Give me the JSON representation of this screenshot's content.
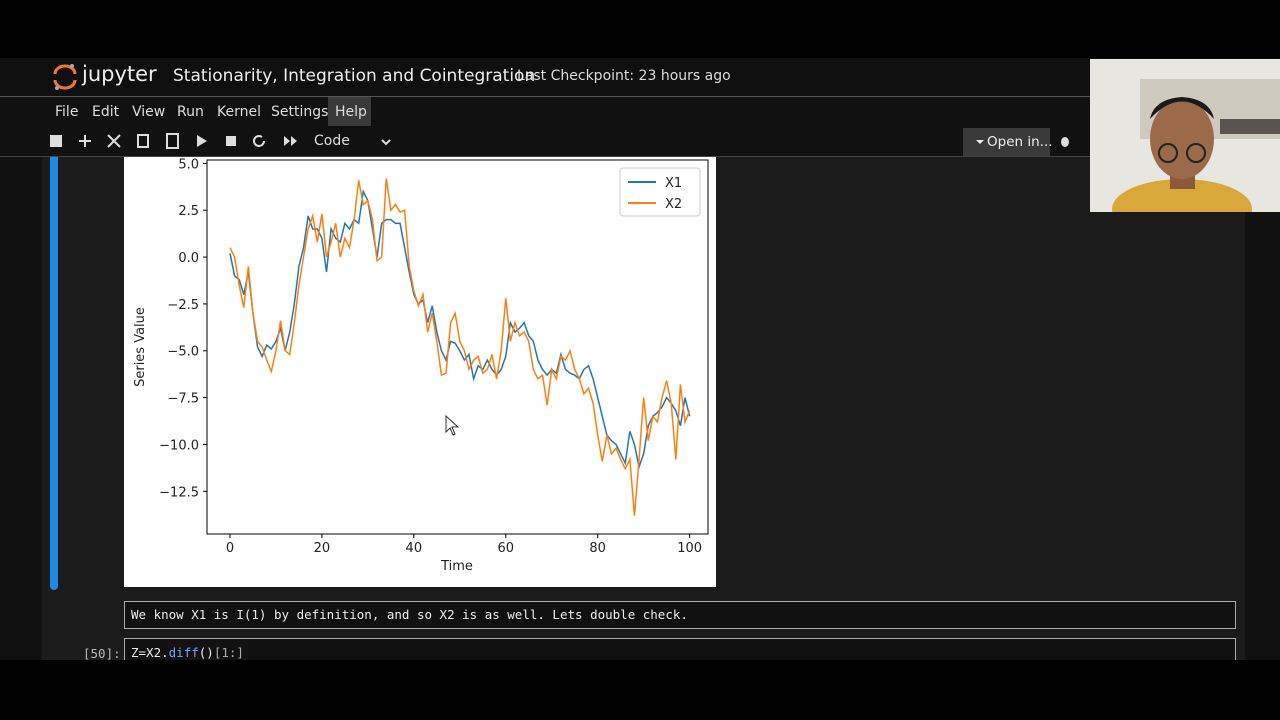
{
  "header": {
    "logo": "jupyter",
    "title": "Stationarity, Integration and Cointegration",
    "checkpoint": "Last Checkpoint: 23 hours ago"
  },
  "menu": [
    "File",
    "Edit",
    "View",
    "Run",
    "Kernel",
    "Settings",
    "Help"
  ],
  "toolbar": {
    "cell_type": "Code",
    "open_in": "Open in..."
  },
  "cells": [
    {
      "text": "We know X1 is I(1) by definition, and so X2 is as well. Lets double check."
    },
    {
      "prompt": "[50]:",
      "code": [
        "Z=X2.",
        "diff",
        "()",
        "[1:]"
      ]
    }
  ],
  "chart_data": {
    "type": "line",
    "xlabel": "Time",
    "ylabel": "Series Value",
    "x": [
      0,
      1,
      2,
      3,
      4,
      5,
      6,
      7,
      8,
      9,
      10,
      11,
      12,
      13,
      14,
      15,
      16,
      17,
      18,
      19,
      20,
      21,
      22,
      23,
      24,
      25,
      26,
      27,
      28,
      29,
      30,
      31,
      32,
      33,
      34,
      35,
      36,
      37,
      38,
      39,
      40,
      41,
      42,
      43,
      44,
      45,
      46,
      47,
      48,
      49,
      50,
      51,
      52,
      53,
      54,
      55,
      56,
      57,
      58,
      59,
      60,
      61,
      62,
      63,
      64,
      65,
      66,
      67,
      68,
      69,
      70,
      71,
      72,
      73,
      74,
      75,
      76,
      77,
      78,
      79,
      80,
      81,
      82,
      83,
      84,
      85,
      86,
      87,
      88,
      89,
      90,
      91,
      92,
      93,
      94,
      95,
      96,
      97,
      98,
      99,
      100
    ],
    "series": [
      {
        "name": "X1",
        "color": "#1f77b4",
        "values": [
          0.2,
          -1.0,
          -1.2,
          -2.0,
          -0.8,
          -3.0,
          -4.8,
          -5.3,
          -4.7,
          -4.9,
          -4.5,
          -3.8,
          -5.0,
          -4.0,
          -2.5,
          -0.5,
          0.5,
          2.2,
          1.5,
          1.5,
          1.0,
          -0.8,
          1.5,
          1.0,
          0.8,
          1.8,
          1.5,
          2.0,
          1.8,
          3.5,
          3.0,
          1.5,
          0.0,
          1.8,
          2.0,
          2.0,
          1.8,
          1.8,
          0.5,
          -0.8,
          -2.0,
          -2.5,
          -2.3,
          -3.5,
          -2.6,
          -4.0,
          -5.0,
          -5.5,
          -4.5,
          -4.6,
          -5.0,
          -5.5,
          -5.2,
          -6.5,
          -5.8,
          -6.0,
          -5.5,
          -6.0,
          -6.3,
          -6.0,
          -5.3,
          -3.5,
          -4.0,
          -3.8,
          -3.5,
          -4.2,
          -4.5,
          -5.5,
          -6.0,
          -6.3,
          -6.0,
          -6.2,
          -5.2,
          -6.0,
          -6.2,
          -6.3,
          -6.5,
          -6.0,
          -5.8,
          -6.5,
          -7.5,
          -8.5,
          -9.5,
          -9.8,
          -10.0,
          -10.5,
          -11.0,
          -9.3,
          -10.0,
          -11.2,
          -10.5,
          -9.0,
          -8.5,
          -8.3,
          -8.0,
          -7.5,
          -7.8,
          -8.2,
          -9.0,
          -7.5,
          -8.5
        ]
      },
      {
        "name": "X2",
        "color": "#ff7f0e",
        "values": [
          0.5,
          0.0,
          -1.5,
          -2.7,
          -0.5,
          -3.0,
          -4.5,
          -4.8,
          -5.5,
          -6.1,
          -5.0,
          -3.4,
          -5.0,
          -5.2,
          -3.5,
          -1.5,
          0.0,
          1.5,
          2.2,
          0.8,
          2.3,
          0.0,
          0.8,
          1.8,
          0.0,
          1.0,
          0.5,
          2.0,
          4.1,
          2.8,
          3.0,
          2.0,
          -0.2,
          0.0,
          4.2,
          2.5,
          2.8,
          2.4,
          2.5,
          -0.5,
          -1.8,
          -2.6,
          -2.0,
          -4.0,
          -3.0,
          -4.5,
          -6.3,
          -6.2,
          -3.5,
          -3.0,
          -4.5,
          -5.0,
          -6.0,
          -5.5,
          -5.3,
          -6.2,
          -6.0,
          -5.2,
          -6.5,
          -5.0,
          -2.2,
          -4.5,
          -3.5,
          -4.2,
          -4.0,
          -4.5,
          -6.0,
          -6.5,
          -6.3,
          -7.9,
          -6.0,
          -6.5,
          -5.3,
          -5.5,
          -5.0,
          -6.0,
          -6.5,
          -7.3,
          -7.0,
          -7.8,
          -9.5,
          -10.9,
          -9.5,
          -10.5,
          -10.2,
          -10.8,
          -11.3,
          -10.8,
          -13.8,
          -10.8,
          -7.5,
          -9.8,
          -8.5,
          -8.8,
          -7.5,
          -6.6,
          -7.8,
          -10.8,
          -6.8,
          -8.8,
          -8.2
        ]
      }
    ],
    "xlim": [
      -5,
      104
    ],
    "ylim": [
      -14.78,
      5.18
    ],
    "xticks": [
      0,
      20,
      40,
      60,
      80,
      100
    ],
    "yticks": [
      {
        "value": 5,
        "label": "5.0"
      },
      {
        "value": 2.5,
        "label": "2.5"
      },
      {
        "value": 0,
        "label": "0.0"
      },
      {
        "value": -2.5,
        "label": "−2.5"
      },
      {
        "value": -5,
        "label": "−5.0"
      },
      {
        "value": -7.5,
        "label": "−7.5"
      },
      {
        "value": -10,
        "label": "−10.0"
      },
      {
        "value": -12.5,
        "label": "−12.5"
      }
    ],
    "legend": "upper right"
  }
}
